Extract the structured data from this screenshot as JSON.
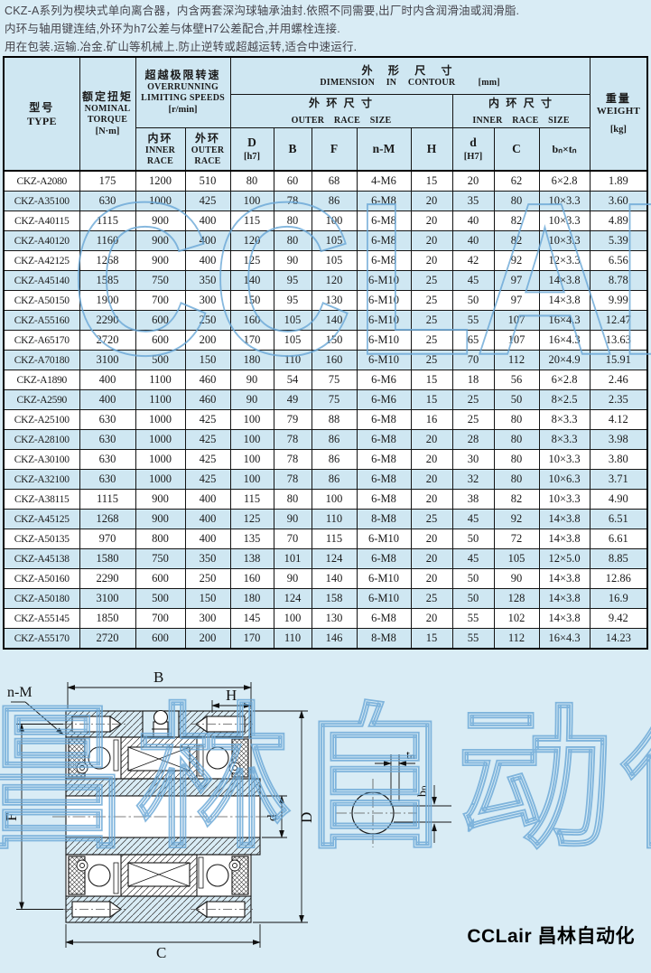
{
  "page": {
    "description_lines": [
      "CKZ-A系列为楔块式单向离合器，内含两套深沟球轴承油封.依照不同需要,出厂时内含润滑油或润滑脂.",
      "内环与轴用键连结,外环为h7公差与体壁H7公差配合,并用螺栓连接.",
      "用在包装.运输.冶金.矿山等机械上.防止逆转或超越运转,适合中速运行."
    ],
    "watermark_table": "CCLAIR",
    "watermark_diagram": "昌林自动化",
    "logo_text": "CCLair 昌林自动化",
    "colors": {
      "background": "#d9ecf5",
      "row_alt": "#cfe7f2",
      "row_white": "#ffffff",
      "border": "#000000",
      "watermark": "#68a6d6"
    }
  },
  "table": {
    "header": {
      "type_zh": "型号",
      "type_en": "TYPE",
      "torque_zh": "额定扭矩",
      "torque_en1": "NOMINAL",
      "torque_en2": "TORQUE",
      "torque_unit": "[N·m]",
      "speeds_zh": "超越极限转速",
      "speeds_en1": "OVERRUNNING",
      "speeds_en2": "LIMITING SPEEDS",
      "speeds_unit": "[r/min]",
      "inner_race_zh": "内环",
      "inner_race_en1": "INNER",
      "inner_race_en2": "RACE",
      "outer_race_zh": "外环",
      "outer_race_en1": "OUTER",
      "outer_race_en2": "RACE",
      "dimension_zh": "外 形 尺 寸",
      "dimension_en": "DIMENSION IN CONTOUR",
      "dimension_unit": "[mm]",
      "outer_size_zh": "外 环 尺 寸",
      "outer_size_en": "OUTER RACE SIZE",
      "inner_size_zh": "内 环 尺 寸",
      "inner_size_en": "INNER RACE SIZE",
      "col_D": "D",
      "col_D_unit": "[h7]",
      "col_B": "B",
      "col_F": "F",
      "col_nM": "n-M",
      "col_H": "H",
      "col_d": "d",
      "col_d_unit": "[H7]",
      "col_C": "C",
      "col_bt": "bₙ×tₙ",
      "weight_zh": "重量",
      "weight_en": "WEIGHT",
      "weight_unit": "[kg]"
    },
    "rows": [
      [
        "CKZ-A2080",
        "175",
        "1200",
        "510",
        "80",
        "60",
        "68",
        "4-M6",
        "15",
        "20",
        "62",
        "6×2.8",
        "1.89"
      ],
      [
        "CKZ-A35100",
        "630",
        "1000",
        "425",
        "100",
        "78",
        "86",
        "6-M8",
        "20",
        "35",
        "80",
        "10×3.3",
        "3.60"
      ],
      [
        "CKZ-A40115",
        "1115",
        "900",
        "400",
        "115",
        "80",
        "100",
        "6-M8",
        "20",
        "40",
        "82",
        "10×3.3",
        "4.89"
      ],
      [
        "CKZ-A40120",
        "1160",
        "900",
        "400",
        "120",
        "80",
        "105",
        "6-M8",
        "20",
        "40",
        "82",
        "10×3.3",
        "5.39"
      ],
      [
        "CKZ-A42125",
        "1268",
        "900",
        "400",
        "125",
        "90",
        "105",
        "6-M8",
        "20",
        "42",
        "92",
        "12×3.3",
        "6.56"
      ],
      [
        "CKZ-A45140",
        "1585",
        "750",
        "350",
        "140",
        "95",
        "120",
        "6-M10",
        "25",
        "45",
        "97",
        "14×3.8",
        "8.78"
      ],
      [
        "CKZ-A50150",
        "1900",
        "700",
        "300",
        "150",
        "95",
        "130",
        "6-M10",
        "25",
        "50",
        "97",
        "14×3.8",
        "9.99"
      ],
      [
        "CKZ-A55160",
        "2290",
        "600",
        "250",
        "160",
        "105",
        "140",
        "6-M10",
        "25",
        "55",
        "107",
        "16×4.3",
        "12.47"
      ],
      [
        "CKZ-A65170",
        "2720",
        "600",
        "200",
        "170",
        "105",
        "150",
        "6-M10",
        "25",
        "65",
        "107",
        "16×4.3",
        "13.63"
      ],
      [
        "CKZ-A70180",
        "3100",
        "500",
        "150",
        "180",
        "110",
        "160",
        "6-M10",
        "25",
        "70",
        "112",
        "20×4.9",
        "15.91"
      ],
      [
        "CKZ-A1890",
        "400",
        "1100",
        "460",
        "90",
        "54",
        "75",
        "6-M6",
        "15",
        "18",
        "56",
        "6×2.8",
        "2.46"
      ],
      [
        "CKZ-A2590",
        "400",
        "1100",
        "460",
        "90",
        "49",
        "75",
        "6-M6",
        "15",
        "25",
        "50",
        "8×2.5",
        "2.35"
      ],
      [
        "CKZ-A25100",
        "630",
        "1000",
        "425",
        "100",
        "79",
        "88",
        "6-M8",
        "16",
        "25",
        "80",
        "8×3.3",
        "4.12"
      ],
      [
        "CKZ-A28100",
        "630",
        "1000",
        "425",
        "100",
        "78",
        "86",
        "6-M8",
        "20",
        "28",
        "80",
        "8×3.3",
        "3.98"
      ],
      [
        "CKZ-A30100",
        "630",
        "1000",
        "425",
        "100",
        "78",
        "86",
        "6-M8",
        "20",
        "30",
        "80",
        "10×3.3",
        "3.80"
      ],
      [
        "CKZ-A32100",
        "630",
        "1000",
        "425",
        "100",
        "78",
        "86",
        "6-M8",
        "20",
        "32",
        "80",
        "10×6.3",
        "3.71"
      ],
      [
        "CKZ-A38115",
        "1115",
        "900",
        "400",
        "115",
        "80",
        "100",
        "6-M8",
        "20",
        "38",
        "82",
        "10×3.3",
        "4.90"
      ],
      [
        "CKZ-A45125",
        "1268",
        "900",
        "400",
        "125",
        "90",
        "110",
        "8-M8",
        "25",
        "45",
        "92",
        "14×3.8",
        "6.51"
      ],
      [
        "CKZ-A50135",
        "970",
        "800",
        "400",
        "135",
        "70",
        "115",
        "6-M10",
        "20",
        "50",
        "72",
        "14×3.8",
        "6.61"
      ],
      [
        "CKZ-A45138",
        "1580",
        "750",
        "350",
        "138",
        "101",
        "124",
        "6-M8",
        "20",
        "45",
        "105",
        "12×5.0",
        "8.85"
      ],
      [
        "CKZ-A50160",
        "2290",
        "600",
        "250",
        "160",
        "90",
        "140",
        "6-M10",
        "20",
        "50",
        "90",
        "14×3.8",
        "12.86"
      ],
      [
        "CKZ-A50180",
        "3100",
        "500",
        "150",
        "180",
        "124",
        "158",
        "6-M10",
        "25",
        "50",
        "128",
        "14×3.8",
        "16.9"
      ],
      [
        "CKZ-A55145",
        "1850",
        "700",
        "300",
        "145",
        "100",
        "130",
        "6-M8",
        "20",
        "55",
        "102",
        "14×3.8",
        "9.42"
      ],
      [
        "CKZ-A55170",
        "2720",
        "600",
        "200",
        "170",
        "110",
        "146",
        "8-M8",
        "15",
        "55",
        "112",
        "16×4.3",
        "14.23"
      ]
    ]
  },
  "diagram": {
    "labels": {
      "B": "B",
      "H": "H",
      "nM": "n-M",
      "F": "F",
      "d": "d",
      "D": "D",
      "C": "C",
      "tn": "tₙ",
      "bn": "bₙ"
    }
  }
}
